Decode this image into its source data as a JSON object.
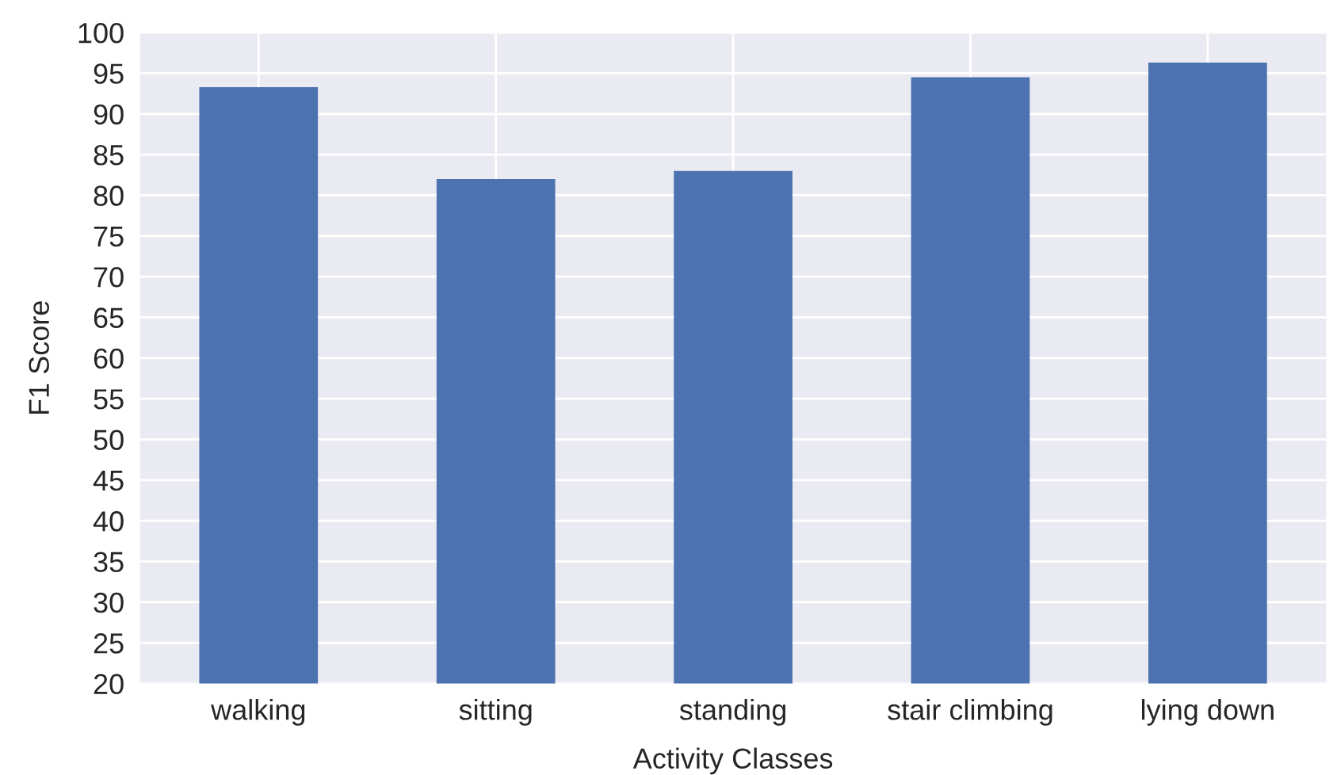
{
  "chart_data": {
    "type": "bar",
    "xlabel": "Activity Classes",
    "ylabel": "F1 Score",
    "categories": [
      "walking",
      "sitting",
      "standing",
      "stair climbing",
      "lying down"
    ],
    "values": [
      93.3,
      82.0,
      83.0,
      94.5,
      96.3
    ],
    "color": "#4c72b0",
    "ylim": [
      20,
      100
    ],
    "yticks": [
      20,
      25,
      30,
      35,
      40,
      45,
      50,
      55,
      60,
      65,
      70,
      75,
      80,
      85,
      90,
      95,
      100
    ],
    "grid": true
  }
}
